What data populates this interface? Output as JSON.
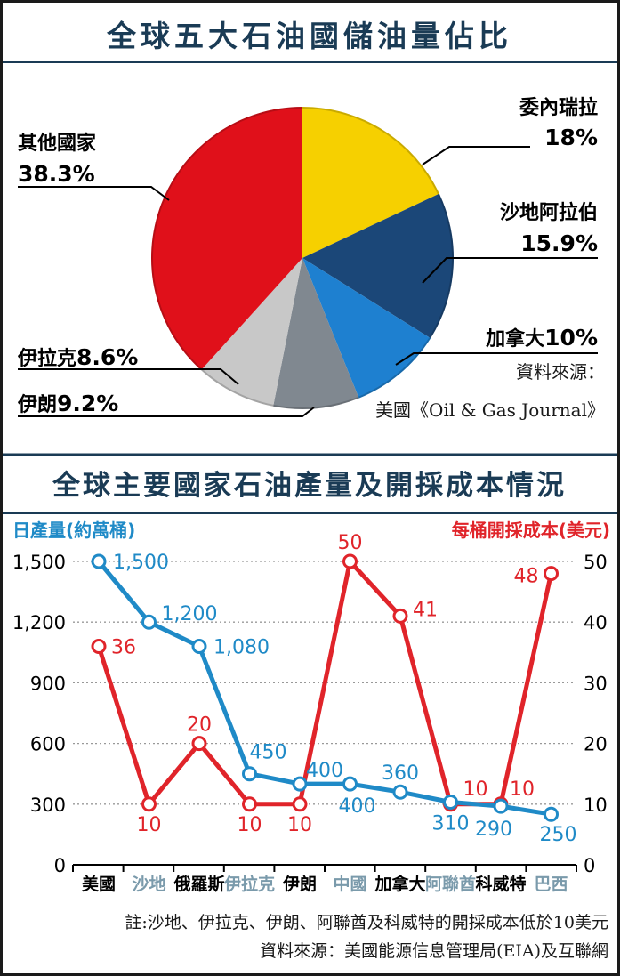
{
  "colors": {
    "background": "#ffffff",
    "border": "#1a1a1a",
    "title_text": "#1a3b55",
    "divider": "#1a3b55",
    "cost_red": "#e0242a",
    "output_blue": "#1f8ac7",
    "grid": "#999999",
    "gray_label": "#7a9aab"
  },
  "pie_section": {
    "title": "全球五大石油國儲油量佔比",
    "source_label": "資料來源：",
    "source_text": "美國《Oil & Gas Journal》"
  },
  "line_section": {
    "title": "全球主要國家石油產量及開採成本情況",
    "left_axis_label": "日產量(約萬桶)",
    "right_axis_label": "每桶開採成本(美元)"
  },
  "footer": {
    "note": "註:沙地、伊拉克、伊朗、阿聯酋及科威特的開採成本低於10美元",
    "source": "資料來源：美國能源信息管理局(EIA)及互聯網"
  },
  "chart_data": [
    {
      "type": "pie",
      "title": "全球五大石油國儲油量佔比",
      "unit": "%",
      "slices": [
        {
          "name": "委內瑞拉",
          "value": 18,
          "display": "18%",
          "color": "#f6d000"
        },
        {
          "name": "沙地阿拉伯",
          "value": 15.9,
          "display": "15.9%",
          "color": "#1b4778"
        },
        {
          "name": "加拿大",
          "value": 10,
          "display": "10%",
          "color": "#1e80d0"
        },
        {
          "name": "伊朗",
          "value": 9.2,
          "display": "9.2%",
          "color": "#808890"
        },
        {
          "name": "伊拉克",
          "value": 8.6,
          "display": "8.6%",
          "color": "#c8c8c8"
        },
        {
          "name": "其他國家",
          "value": 38.3,
          "display": "38.3%",
          "color": "#e0101a"
        }
      ]
    },
    {
      "type": "line",
      "title": "全球主要國家石油產量及開採成本情況",
      "categories": [
        "美國",
        "沙地",
        "俄羅斯",
        "伊拉克",
        "伊朗",
        "中國",
        "加拿大",
        "阿聯酋",
        "科威特",
        "巴西"
      ],
      "category_colors": [
        "#000000",
        "#7a9aab",
        "#000000",
        "#7a9aab",
        "#000000",
        "#7a9aab",
        "#000000",
        "#7a9aab",
        "#000000",
        "#7a9aab"
      ],
      "left_axis": {
        "label": "日產量(約萬桶)",
        "ylim": [
          0,
          1500
        ],
        "ticks": [
          0,
          300,
          600,
          900,
          1200,
          1500
        ],
        "tick_labels": [
          "0",
          "300",
          "600",
          "900",
          "1,200",
          "1,500"
        ]
      },
      "right_axis": {
        "label": "每桶開採成本(美元)",
        "ylim": [
          0,
          50
        ],
        "ticks": [
          0,
          10,
          20,
          30,
          40,
          50
        ],
        "tick_labels": [
          "0",
          "10",
          "20",
          "30",
          "40",
          "50"
        ]
      },
      "series": [
        {
          "name": "日產量(約萬桶)",
          "axis": "left",
          "color": "#1f8ac7",
          "values": [
            1500,
            1200,
            1080,
            450,
            400,
            400,
            360,
            310,
            290,
            250
          ],
          "labels": [
            "1,500",
            "1,200",
            "1,080",
            "450",
            "400",
            "400",
            "360",
            "310",
            "290",
            "250"
          ]
        },
        {
          "name": "每桶開採成本(美元)",
          "axis": "right",
          "color": "#e0242a",
          "values": [
            36,
            10,
            20,
            10,
            10,
            50,
            41,
            10,
            10,
            48
          ],
          "labels": [
            "36",
            "10",
            "20",
            "10",
            "10",
            "50",
            "41",
            "10",
            "10",
            "48"
          ]
        }
      ],
      "grid": true
    }
  ]
}
